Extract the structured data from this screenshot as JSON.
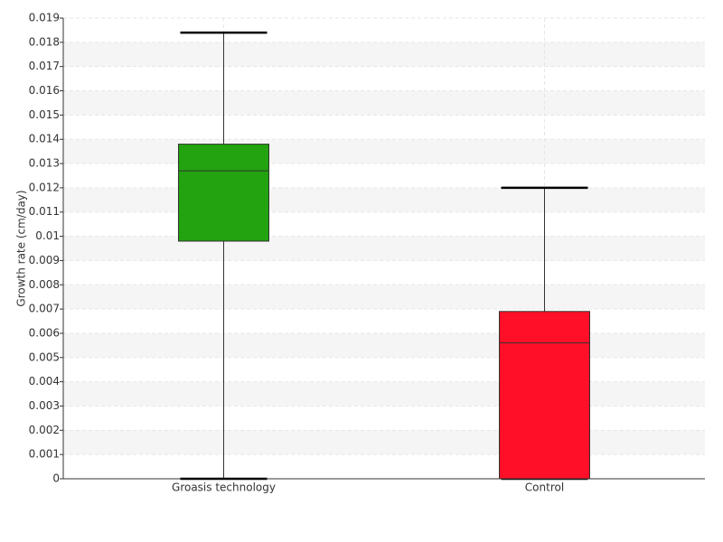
{
  "chart_data": {
    "type": "box",
    "y_label": "Growth rate (cm/day)",
    "categories": [
      "Groasis technology",
      "Control"
    ],
    "boxes": [
      {
        "color": "#22a30f",
        "whisker_low": 0,
        "q1": 0.0098,
        "median": 0.0127,
        "q3": 0.0138,
        "whisker_high": 0.0184
      },
      {
        "color": "#ff0f28",
        "whisker_low": 0,
        "q1": 0,
        "median": 0.0056,
        "q3": 0.0069,
        "whisker_high": 0.012
      }
    ],
    "ylim": [
      0,
      0.019
    ],
    "yticks": [
      0,
      0.001,
      0.002,
      0.003,
      0.004,
      0.005,
      0.006,
      0.007,
      0.008,
      0.009,
      0.01,
      0.011,
      0.012,
      0.013,
      0.014,
      0.015,
      0.016,
      0.017,
      0.018,
      0.019
    ],
    "grid": true
  }
}
